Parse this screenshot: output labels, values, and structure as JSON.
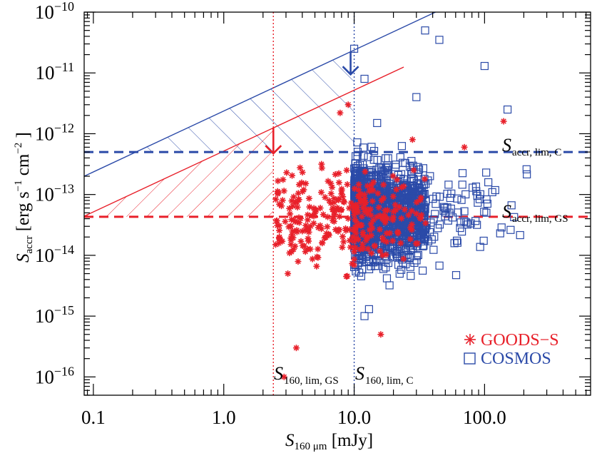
{
  "chart_data": {
    "type": "scatter",
    "x_scale": "log",
    "y_scale": "log",
    "xlim": [
      0.085,
      650
    ],
    "ylim": [
      5e-17,
      1e-10
    ],
    "xlabel": {
      "main": "S",
      "sub": "160 μm",
      "unit": " [mJy]"
    },
    "ylabel": {
      "main": "S",
      "sub": "accr",
      "unit": " [erg s",
      "unit_exp1": "−1",
      "unit_mid": " cm",
      "unit_exp2": "−2",
      "unit_end": " ]"
    },
    "x_ticks": [
      {
        "value": 0.1,
        "label": "0.1"
      },
      {
        "value": 1.0,
        "label": "1.0"
      },
      {
        "value": 10.0,
        "label": "10.0"
      },
      {
        "value": 100.0,
        "label": "100.0"
      }
    ],
    "y_ticks": [
      {
        "value": 1e-16,
        "base": "10",
        "exp": "−16"
      },
      {
        "value": 1e-15,
        "base": "10",
        "exp": "−15"
      },
      {
        "value": 1e-14,
        "base": "10",
        "exp": "−14"
      },
      {
        "value": 1e-13,
        "base": "10",
        "exp": "−13"
      },
      {
        "value": 1e-12,
        "base": "10",
        "exp": "−12"
      },
      {
        "value": 1e-11,
        "base": "10",
        "exp": "−11"
      },
      {
        "value": 1e-10,
        "base": "10",
        "exp": "−10"
      }
    ],
    "limits": {
      "accr_lim_C": {
        "value": 5e-13,
        "color": "#2b4aa8",
        "label_main": "S",
        "label_sub": "accr, lim, C"
      },
      "accr_lim_GS": {
        "value": 4.3e-14,
        "color": "#e8202a",
        "label_main": "S",
        "label_sub": "accr, lim, GS"
      },
      "s160_lim_GS": {
        "value": 2.4,
        "color": "#e8202a",
        "label_main": "S",
        "label_sub": "160, lim, GS"
      },
      "s160_lim_C": {
        "value": 10.0,
        "color": "#2b4aa8",
        "label_main": "S",
        "label_sub": "160, lim, C"
      }
    },
    "slope_lines": {
      "cosmos": {
        "x": [
          0.085,
          42
        ],
        "y": [
          2e-13,
          1e-10
        ],
        "color": "#2b4aa8"
      },
      "goods_s": {
        "x": [
          0.085,
          24
        ],
        "y": [
          4.4e-14,
          1.25e-11
        ],
        "color": "#e8202a"
      }
    },
    "series": [
      {
        "name": "GOODS−S",
        "marker": "asterisk",
        "color": "#e8202a",
        "n": 300,
        "x_range": [
          2.5,
          140
        ],
        "y_median": 4.5e-14,
        "samples": [
          [
            2.5,
            1.5e-14
          ],
          [
            3.1,
            5e-15
          ],
          [
            4.0,
            2.5e-14
          ],
          [
            5.5,
            6e-14
          ],
          [
            7.8,
            2.2e-12
          ],
          [
            9.0,
            3e-12
          ],
          [
            12,
            1e-13
          ],
          [
            18,
            4e-14
          ],
          [
            28,
            8e-13
          ],
          [
            70,
            6e-13
          ],
          [
            140,
            1.6e-12
          ],
          [
            3.6,
            3e-16
          ],
          [
            2.9,
            1e-16
          ],
          [
            16,
            5e-16
          ]
        ]
      },
      {
        "name": "COSMOS",
        "marker": "square",
        "color": "#2b4aa8",
        "n": 1400,
        "x_range": [
          10,
          210
        ],
        "y_median": 5e-14,
        "samples": [
          [
            10,
            2.5e-11
          ],
          [
            12,
            8e-12
          ],
          [
            15,
            1.5e-12
          ],
          [
            18,
            3e-13
          ],
          [
            20,
            5e-14
          ],
          [
            25,
            1e-14
          ],
          [
            30,
            4e-12
          ],
          [
            35,
            5e-11
          ],
          [
            45,
            3.5e-11
          ],
          [
            100,
            1.3e-11
          ],
          [
            150,
            2.5e-12
          ],
          [
            210,
            2.6e-13
          ],
          [
            12,
            1e-15
          ],
          [
            13,
            1.3e-15
          ]
        ]
      }
    ],
    "legend": {
      "placement": "bottom-right",
      "entries": [
        {
          "label": "GOODS−S",
          "color": "#e8202a",
          "marker": "asterisk"
        },
        {
          "label": "COSMOS",
          "color": "#2b4aa8",
          "marker": "square"
        }
      ]
    },
    "grid": false
  },
  "colors": {
    "red": "#e8202a",
    "blue": "#2b4aa8",
    "axis": "#000000"
  }
}
